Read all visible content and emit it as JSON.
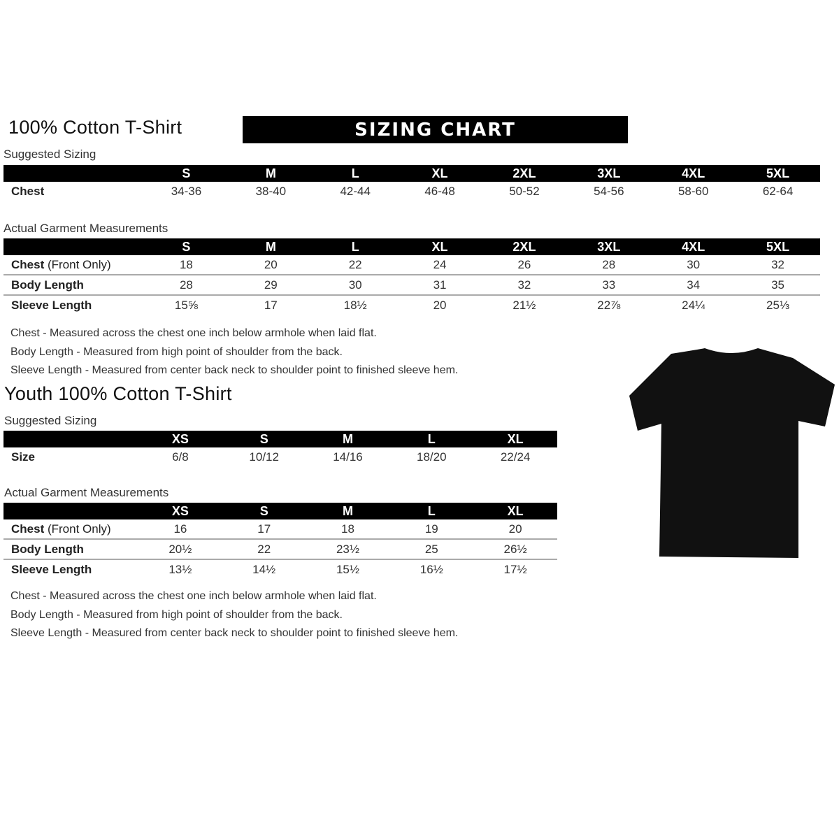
{
  "adult": {
    "title": "100% Cotton T-Shirt",
    "banner": "SIZING CHART",
    "suggested_label": "Suggested Sizing",
    "sizes": [
      "S",
      "M",
      "L",
      "XL",
      "2XL",
      "3XL",
      "4XL",
      "5XL"
    ],
    "suggested_rows": [
      {
        "label": "Chest",
        "extra": "",
        "values": [
          "34-36",
          "38-40",
          "42-44",
          "46-48",
          "50-52",
          "54-56",
          "58-60",
          "62-64"
        ]
      }
    ],
    "actual_label": "Actual Garment Measurements",
    "actual_rows": [
      {
        "label": "Chest",
        "extra": " (Front Only)",
        "values": [
          "18",
          "20",
          "22",
          "24",
          "26",
          "28",
          "30",
          "32"
        ]
      },
      {
        "label": "Body Length",
        "extra": "",
        "values": [
          "28",
          "29",
          "30",
          "31",
          "32",
          "33",
          "34",
          "35"
        ]
      },
      {
        "label": "Sleeve Length",
        "extra": "",
        "values": [
          "15⅝",
          "17",
          "18½",
          "20",
          "21½",
          "22⅞",
          "24¼",
          "25⅓"
        ]
      }
    ],
    "notes": [
      "Chest - Measured across the chest one inch below armhole when laid flat.",
      "Body Length - Measured from high point of shoulder from the back.",
      "Sleeve Length - Measured from center back neck to shoulder point to finished sleeve hem."
    ]
  },
  "youth": {
    "title": "Youth 100% Cotton T-Shirt",
    "suggested_label": "Suggested Sizing",
    "sizes": [
      "XS",
      "S",
      "M",
      "L",
      "XL"
    ],
    "suggested_rows": [
      {
        "label": "Size",
        "extra": "",
        "values": [
          "6/8",
          "10/12",
          "14/16",
          "18/20",
          "22/24"
        ]
      }
    ],
    "actual_label": "Actual Garment Measurements",
    "actual_rows": [
      {
        "label": "Chest",
        "extra": " (Front Only)",
        "values": [
          "16",
          "17",
          "18",
          "19",
          "20"
        ]
      },
      {
        "label": "Body Length",
        "extra": "",
        "values": [
          "20½",
          "22",
          "23½",
          "25",
          "26½"
        ]
      },
      {
        "label": "Sleeve Length",
        "extra": "",
        "values": [
          "13½",
          "14½",
          "15½",
          "16½",
          "17½"
        ]
      }
    ],
    "notes": [
      "Chest - Measured across the chest one inch below armhole when laid flat.",
      "Body Length - Measured from high point of shoulder from the back.",
      "Sleeve Length - Measured from center back neck to shoulder point to finished sleeve hem."
    ]
  },
  "image": {
    "icon": "t-shirt-icon",
    "color": "#111111"
  }
}
